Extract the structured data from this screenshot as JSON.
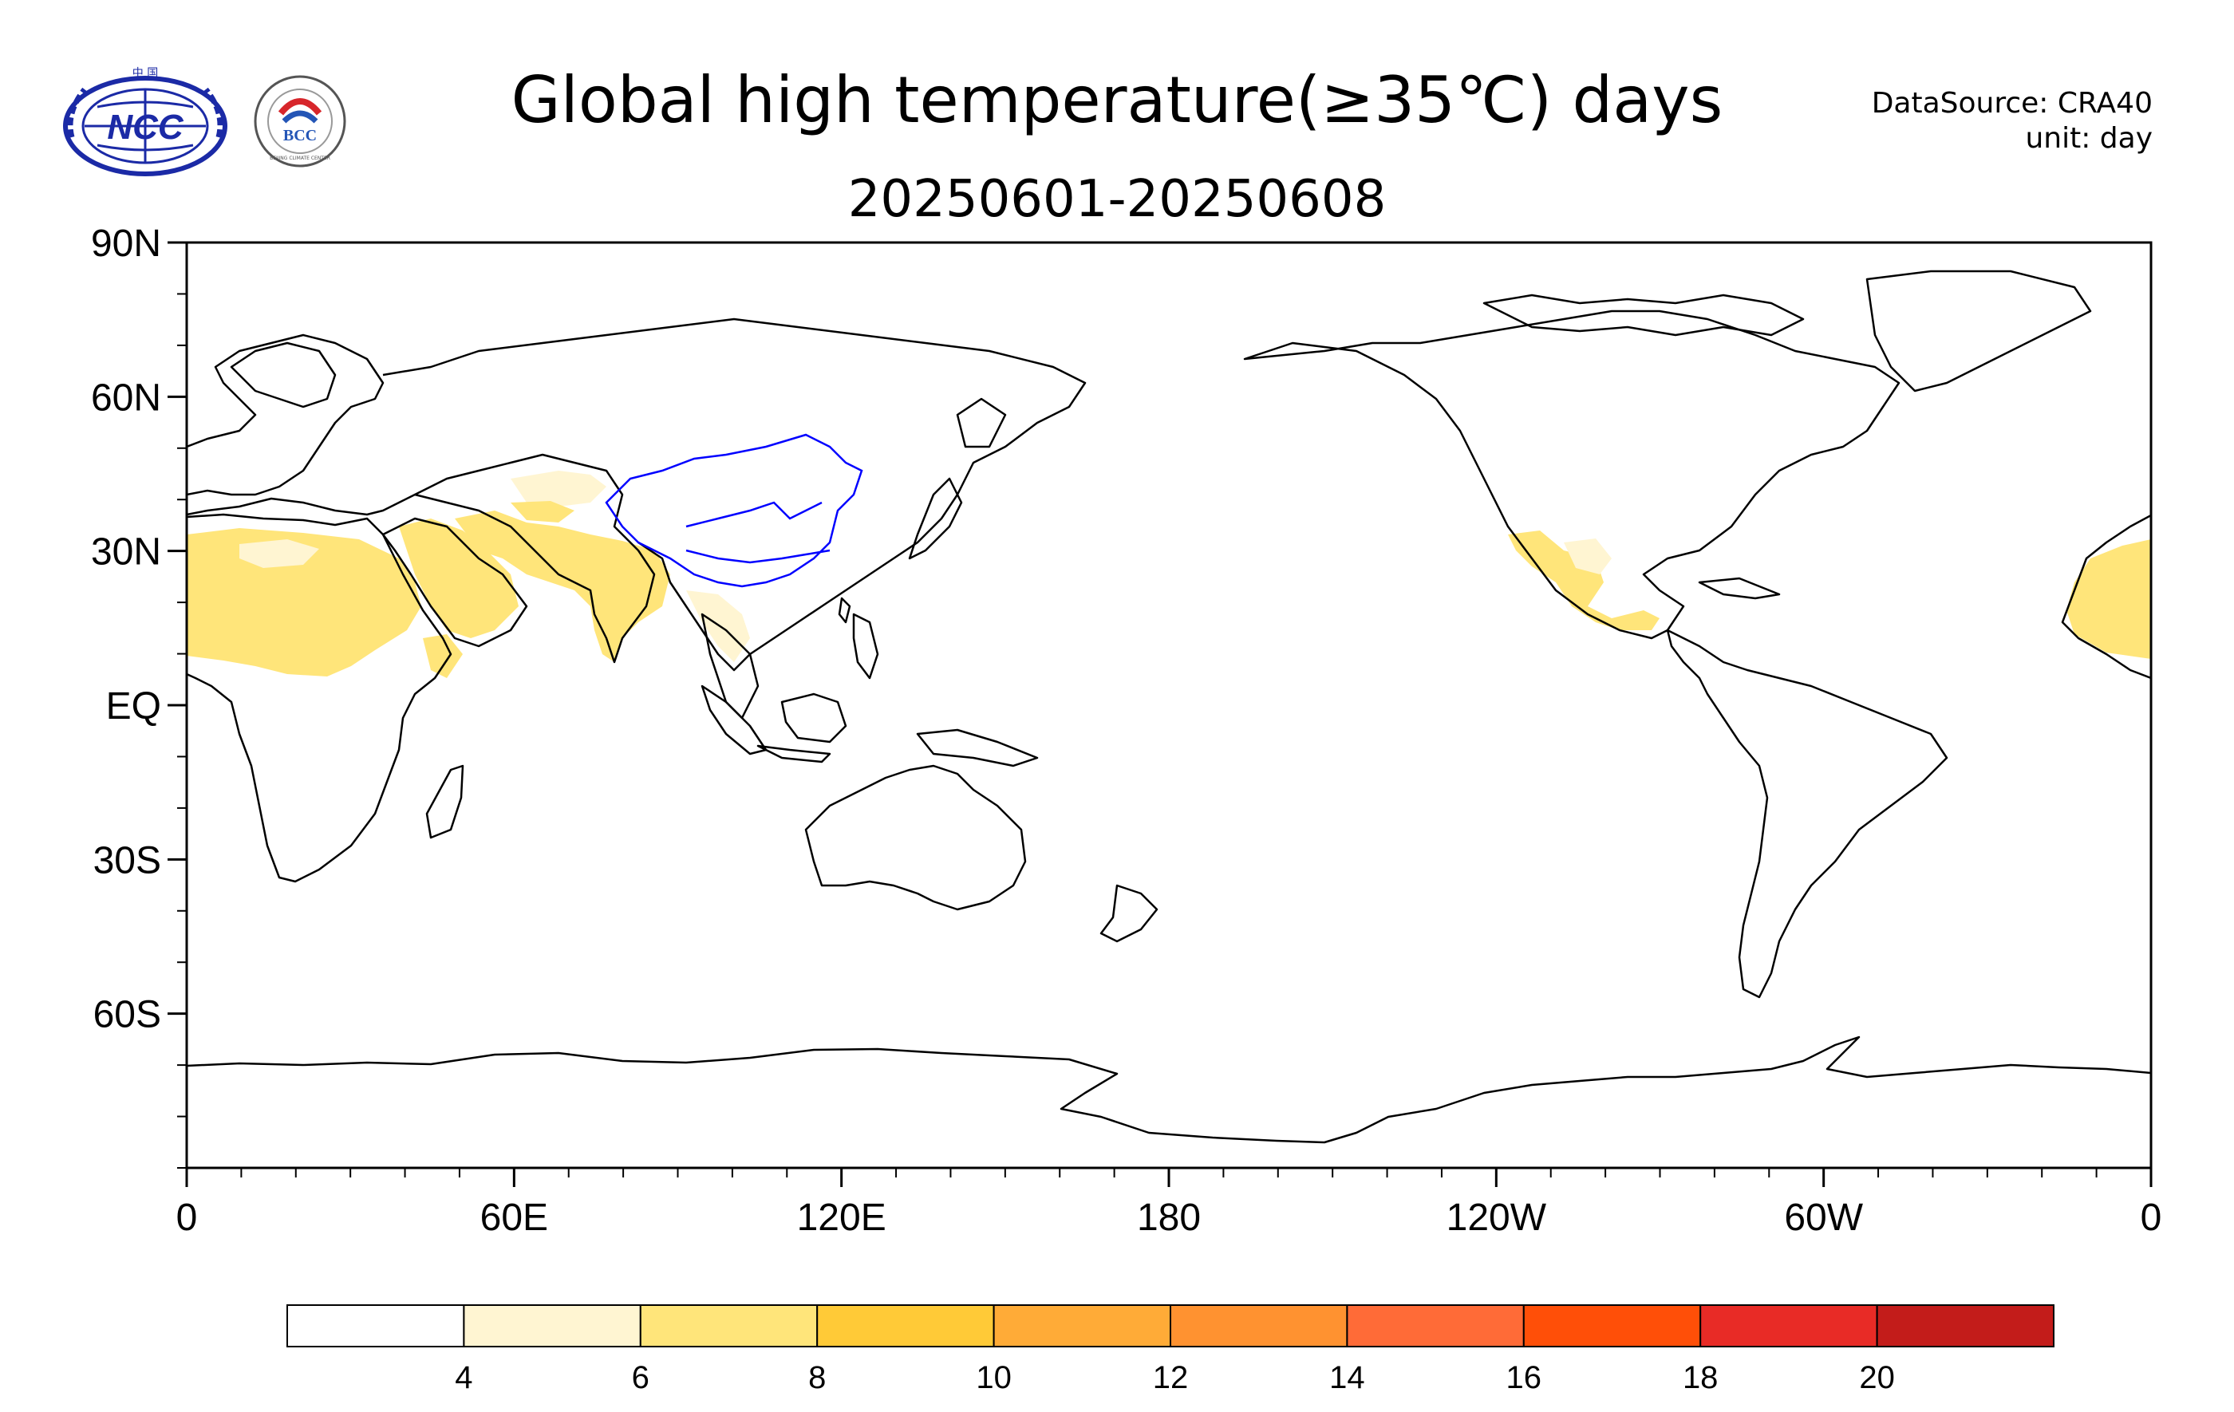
{
  "title": "Global high temperature(≥35℃) days",
  "subtitle": "20250601-20250608",
  "data_source": "DataSource: CRA40",
  "unit": "unit: day",
  "logos": [
    {
      "name": "ncc-logo",
      "label": "NCC",
      "top_text": "中 国"
    },
    {
      "name": "bcc-logo",
      "label": "BCC",
      "ring_text": "BEIJING CLIMATE CENTER"
    }
  ],
  "map": {
    "projection": "equirectangular",
    "central_longitude": 180,
    "lon_range": [
      0,
      360
    ],
    "lat_range": [
      -90,
      90
    ],
    "lat_ticks": [
      {
        "value": 90,
        "label": "90N"
      },
      {
        "value": 60,
        "label": "60N"
      },
      {
        "value": 30,
        "label": "30N"
      },
      {
        "value": 0,
        "label": "EQ"
      },
      {
        "value": -30,
        "label": "30S"
      },
      {
        "value": -60,
        "label": "60S"
      }
    ],
    "lon_ticks": [
      {
        "value": 0,
        "label": "0"
      },
      {
        "value": 60,
        "label": "60E"
      },
      {
        "value": 120,
        "label": "120E"
      },
      {
        "value": 180,
        "label": "180"
      },
      {
        "value": 240,
        "label": "120W"
      },
      {
        "value": 300,
        "label": "60W"
      },
      {
        "value": 360,
        "label": "0"
      }
    ],
    "coast_color": "#000000",
    "china_rivers_color": "#0000ff"
  },
  "colorbar": {
    "levels": [
      4,
      6,
      8,
      10,
      12,
      14,
      16,
      18,
      20
    ],
    "colors": [
      "#ffffff",
      "#fff5d2",
      "#ffe57a",
      "#ffca37",
      "#ffab37",
      "#ff9230",
      "#ff6b37",
      "#ff4f08",
      "#e82b26",
      "#c31c1a"
    ]
  },
  "shading": [
    {
      "region": "North Africa / Sahara",
      "bin": "6-8"
    },
    {
      "region": "Arabian Peninsula",
      "bin": "6-8"
    },
    {
      "region": "Iran / Pakistan / NW India",
      "bin": "6-8"
    },
    {
      "region": "Central Asia",
      "bin": "4-6"
    },
    {
      "region": "Mexico",
      "bin": "6-8"
    },
    {
      "region": "West Sahara (right edge)",
      "bin": "6-8"
    }
  ]
}
